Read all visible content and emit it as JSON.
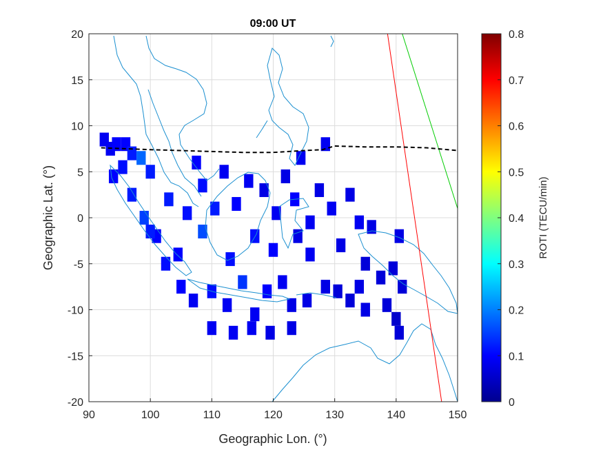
{
  "chart_data": {
    "type": "heatmap",
    "title": "09:00 UT",
    "xlabel": "Geographic Lon. (°)",
    "ylabel": "Geographic Lat. (°)",
    "xlim": [
      90,
      150
    ],
    "ylim": [
      -20,
      20
    ],
    "xticks": [
      90,
      100,
      110,
      120,
      130,
      140,
      150
    ],
    "yticks": [
      20,
      15,
      10,
      5,
      0,
      -5,
      -10,
      -15,
      -20
    ],
    "grid": true,
    "colorbar": {
      "label": "ROTI (TECU/min)",
      "colormap": "jet",
      "range": [
        0,
        0.8
      ],
      "ticks": [
        0.8,
        0.7,
        0.6,
        0.5,
        0.4,
        0.3,
        0.2,
        0.1,
        0
      ]
    },
    "magnetic_equator": {
      "style": "dashed",
      "color": "#000000",
      "lon": [
        92,
        96,
        100,
        105,
        110,
        115,
        120,
        125,
        128,
        130,
        135,
        140,
        145,
        150
      ],
      "lat": [
        7.6,
        7.5,
        7.4,
        7.3,
        7.2,
        7.1,
        7.1,
        7.3,
        7.4,
        7.8,
        7.7,
        7.7,
        7.6,
        7.3
      ]
    },
    "terminator_lines": [
      {
        "color": "#ff0000",
        "lon": [
          138.6,
          147.4
        ],
        "lat": [
          20,
          -20
        ]
      },
      {
        "color": "#00cc00",
        "lon": [
          141.0,
          150.0
        ],
        "lat": [
          20,
          1.0
        ]
      }
    ],
    "roti_cells": [
      {
        "lon": 92.5,
        "lat": 8.5,
        "v": 0.09
      },
      {
        "lon": 93.5,
        "lat": 7.5,
        "v": 0.09
      },
      {
        "lon": 94.5,
        "lat": 8.0,
        "v": 0.1
      },
      {
        "lon": 96.0,
        "lat": 8.0,
        "v": 0.1
      },
      {
        "lon": 97.0,
        "lat": 7.0,
        "v": 0.12
      },
      {
        "lon": 98.5,
        "lat": 6.5,
        "v": 0.18
      },
      {
        "lon": 100.0,
        "lat": 5.0,
        "v": 0.12
      },
      {
        "lon": 95.5,
        "lat": 5.5,
        "v": 0.11
      },
      {
        "lon": 94.0,
        "lat": 4.5,
        "v": 0.1
      },
      {
        "lon": 97.0,
        "lat": 2.5,
        "v": 0.12
      },
      {
        "lon": 99.0,
        "lat": 0.0,
        "v": 0.15
      },
      {
        "lon": 101.0,
        "lat": -2.0,
        "v": 0.1
      },
      {
        "lon": 103.0,
        "lat": 2.0,
        "v": 0.12
      },
      {
        "lon": 104.5,
        "lat": -4.0,
        "v": 0.1
      },
      {
        "lon": 106.0,
        "lat": 0.5,
        "v": 0.11
      },
      {
        "lon": 107.5,
        "lat": 6.0,
        "v": 0.1
      },
      {
        "lon": 108.5,
        "lat": -1.5,
        "v": 0.16
      },
      {
        "lon": 108.5,
        "lat": 3.5,
        "v": 0.11
      },
      {
        "lon": 110.5,
        "lat": 1.0,
        "v": 0.12
      },
      {
        "lon": 112.0,
        "lat": 5.0,
        "v": 0.09
      },
      {
        "lon": 113.0,
        "lat": -4.5,
        "v": 0.11
      },
      {
        "lon": 114.0,
        "lat": 1.5,
        "v": 0.1
      },
      {
        "lon": 116.0,
        "lat": 4.0,
        "v": 0.09
      },
      {
        "lon": 117.0,
        "lat": -2.0,
        "v": 0.11
      },
      {
        "lon": 118.5,
        "lat": 3.0,
        "v": 0.08
      },
      {
        "lon": 120.5,
        "lat": 0.5,
        "v": 0.09
      },
      {
        "lon": 122.0,
        "lat": 4.5,
        "v": 0.08
      },
      {
        "lon": 123.5,
        "lat": 2.0,
        "v": 0.1
      },
      {
        "lon": 124.0,
        "lat": -2.0,
        "v": 0.08
      },
      {
        "lon": 124.5,
        "lat": 6.5,
        "v": 0.09
      },
      {
        "lon": 126.0,
        "lat": -0.5,
        "v": 0.09
      },
      {
        "lon": 127.5,
        "lat": 3.0,
        "v": 0.08
      },
      {
        "lon": 128.5,
        "lat": 8.0,
        "v": 0.09
      },
      {
        "lon": 129.5,
        "lat": 1.0,
        "v": 0.09
      },
      {
        "lon": 131.0,
        "lat": -3.0,
        "v": 0.08
      },
      {
        "lon": 132.5,
        "lat": 2.5,
        "v": 0.08
      },
      {
        "lon": 134.0,
        "lat": -0.5,
        "v": 0.09
      },
      {
        "lon": 136.0,
        "lat": -1.0,
        "v": 0.08
      },
      {
        "lon": 135.0,
        "lat": -5.0,
        "v": 0.07
      },
      {
        "lon": 134.0,
        "lat": -7.5,
        "v": 0.08
      },
      {
        "lon": 137.5,
        "lat": -6.5,
        "v": 0.07
      },
      {
        "lon": 139.5,
        "lat": -5.5,
        "v": 0.07
      },
      {
        "lon": 140.5,
        "lat": -2.0,
        "v": 0.08
      },
      {
        "lon": 141.0,
        "lat": -7.5,
        "v": 0.07
      },
      {
        "lon": 138.5,
        "lat": -9.5,
        "v": 0.07
      },
      {
        "lon": 140.0,
        "lat": -11.0,
        "v": 0.06
      },
      {
        "lon": 135.0,
        "lat": -10.0,
        "v": 0.08
      },
      {
        "lon": 140.5,
        "lat": -12.5,
        "v": 0.07
      },
      {
        "lon": 105.0,
        "lat": -7.5,
        "v": 0.1
      },
      {
        "lon": 107.0,
        "lat": -9.0,
        "v": 0.09
      },
      {
        "lon": 110.0,
        "lat": -8.0,
        "v": 0.11
      },
      {
        "lon": 112.5,
        "lat": -9.5,
        "v": 0.09
      },
      {
        "lon": 115.0,
        "lat": -7.0,
        "v": 0.14
      },
      {
        "lon": 117.0,
        "lat": -10.5,
        "v": 0.09
      },
      {
        "lon": 119.0,
        "lat": -8.0,
        "v": 0.1
      },
      {
        "lon": 121.5,
        "lat": -7.0,
        "v": 0.09
      },
      {
        "lon": 123.0,
        "lat": -9.5,
        "v": 0.08
      },
      {
        "lon": 110.0,
        "lat": -12.0,
        "v": 0.09
      },
      {
        "lon": 113.5,
        "lat": -12.5,
        "v": 0.09
      },
      {
        "lon": 116.5,
        "lat": -12.0,
        "v": 0.09
      },
      {
        "lon": 119.5,
        "lat": -12.5,
        "v": 0.08
      },
      {
        "lon": 123.0,
        "lat": -12.0,
        "v": 0.08
      },
      {
        "lon": 125.5,
        "lat": -9.0,
        "v": 0.08
      },
      {
        "lon": 128.5,
        "lat": -7.5,
        "v": 0.08
      },
      {
        "lon": 130.5,
        "lat": -8.0,
        "v": 0.07
      },
      {
        "lon": 132.5,
        "lat": -9.0,
        "v": 0.07
      },
      {
        "lon": 102.5,
        "lat": -5.0,
        "v": 0.11
      },
      {
        "lon": 100.0,
        "lat": -1.5,
        "v": 0.12
      },
      {
        "lon": 120.0,
        "lat": -3.5,
        "v": 0.1
      },
      {
        "lon": 126.0,
        "lat": -4.0,
        "v": 0.09
      }
    ]
  },
  "colors": {
    "coastline": "#1a8fd0",
    "grid": "#dcdcdc",
    "axis": "#262626"
  }
}
